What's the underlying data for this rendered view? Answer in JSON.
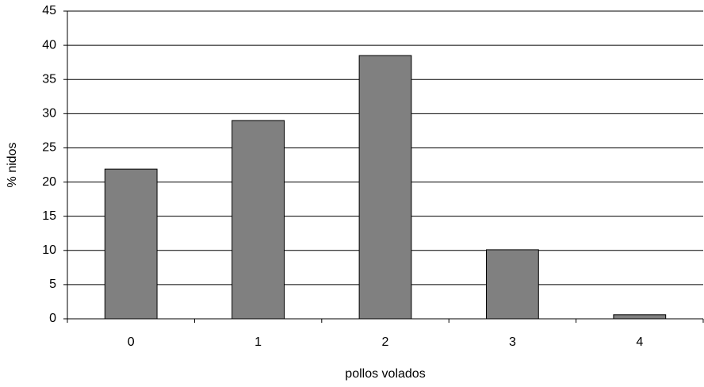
{
  "chart_data": {
    "type": "bar",
    "x_label": "pollos volados",
    "y_label": "% nidos",
    "categories": [
      "0",
      "1",
      "2",
      "3",
      "4"
    ],
    "values": [
      21.9,
      29,
      38.5,
      10.1,
      0.6
    ],
    "color": "#808080",
    "ylim": [
      0,
      45
    ],
    "yticks": [
      0,
      5,
      10,
      15,
      20,
      25,
      30,
      35,
      40,
      45
    ],
    "grid": true
  }
}
